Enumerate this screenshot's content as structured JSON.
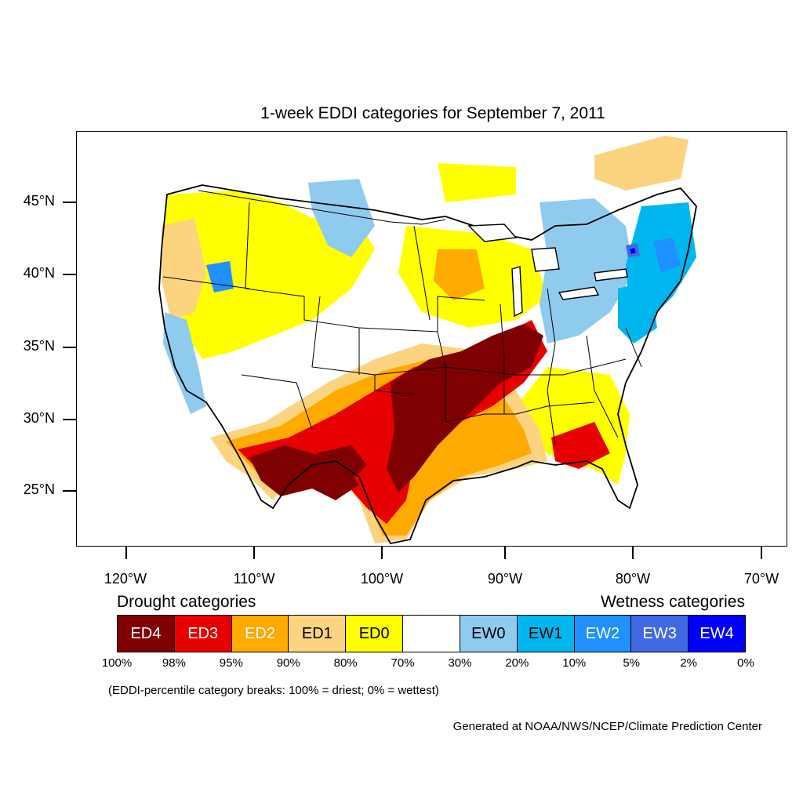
{
  "title": "1-week EDDI categories for September 7, 2011",
  "latitude_labels": [
    "45°N",
    "40°N",
    "35°N",
    "30°N",
    "25°N"
  ],
  "longitude_labels": [
    "120°W",
    "110°W",
    "100°W",
    "90°W",
    "80°W",
    "70°W"
  ],
  "legend": {
    "drought_title": "Drought categories",
    "wetness_title": "Wetness categories",
    "categories": [
      {
        "label": "ED4",
        "color": "#7f0000",
        "text_color": "#ffffff"
      },
      {
        "label": "ED3",
        "color": "#e60000",
        "text_color": "#ffffff"
      },
      {
        "label": "ED2",
        "color": "#ffaa00",
        "text_color": "#ffffff"
      },
      {
        "label": "ED1",
        "color": "#fcd37f",
        "text_color": "#000000"
      },
      {
        "label": "ED0",
        "color": "#ffff00",
        "text_color": "#000000"
      },
      {
        "label": "",
        "color": "#ffffff",
        "text_color": "#000000"
      },
      {
        "label": "EW0",
        "color": "#8fcbee",
        "text_color": "#000000"
      },
      {
        "label": "EW1",
        "color": "#00b6ef",
        "text_color": "#000000"
      },
      {
        "label": "EW2",
        "color": "#1e90ff",
        "text_color": "#ffffff"
      },
      {
        "label": "EW3",
        "color": "#4169e1",
        "text_color": "#ffffff"
      },
      {
        "label": "EW4",
        "color": "#0000ff",
        "text_color": "#ffffff"
      }
    ],
    "percentiles": [
      "100%",
      "98%",
      "95%",
      "90%",
      "80%",
      "70%",
      "30%",
      "20%",
      "10%",
      "5%",
      "2%",
      "0%"
    ]
  },
  "breaks_note": "(EDDI-percentile category breaks: 100% = driest; 0% = wettest)",
  "credit": "Generated at NOAA/NWS/NCEP/Climate Prediction Center"
}
